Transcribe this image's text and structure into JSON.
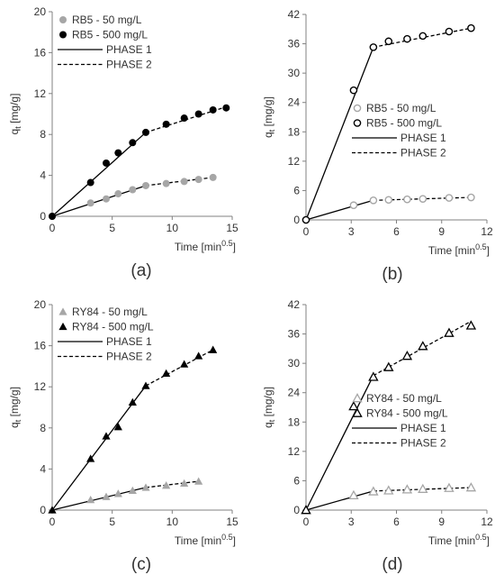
{
  "chart_data": [
    {
      "id": "a",
      "type": "scatter",
      "panel_label": "(a)",
      "xlabel": "Time [min",
      "xlabel_sup": "0.5",
      "xlabel_end": "]",
      "ylabel": "q",
      "ylabel_sub": "t",
      "ylabel_end": " [mg/g]",
      "xlim": [
        0,
        15
      ],
      "ylim": [
        0,
        20
      ],
      "xticks": [
        0,
        5,
        10,
        15
      ],
      "yticks": [
        0,
        4,
        8,
        12,
        16,
        20
      ],
      "legend_position": "top-left",
      "series": [
        {
          "name": "RB5 - 50 mg/L",
          "marker": "circle-filled",
          "color": "#a6a6a6",
          "x": [
            0,
            3.2,
            4.5,
            5.5,
            6.7,
            7.8,
            9.5,
            11.0,
            12.2,
            13.4
          ],
          "y": [
            0,
            1.3,
            1.7,
            2.2,
            2.6,
            3.0,
            3.2,
            3.4,
            3.6,
            3.8
          ]
        },
        {
          "name": "RB5 - 500 mg/L",
          "marker": "circle-filled",
          "color": "#000000",
          "x": [
            0,
            3.2,
            4.5,
            5.5,
            6.7,
            7.8,
            9.5,
            11.0,
            12.2,
            13.4,
            14.5
          ],
          "y": [
            0,
            3.3,
            5.2,
            6.2,
            7.2,
            8.2,
            9.0,
            9.6,
            10.0,
            10.4,
            10.6
          ]
        }
      ],
      "phase_lines": [
        {
          "name": "PHASE 1",
          "style": "solid",
          "x": [
            0,
            7.8
          ],
          "y": [
            0,
            8.2
          ]
        },
        {
          "style": "solid",
          "x": [
            0,
            7.8
          ],
          "y": [
            0,
            3.0
          ]
        },
        {
          "name": "PHASE 2",
          "style": "dashed",
          "x": [
            7.8,
            14.5
          ],
          "y": [
            8.2,
            10.7
          ]
        },
        {
          "style": "dashed",
          "x": [
            7.8,
            13.4
          ],
          "y": [
            3.0,
            3.8
          ]
        }
      ]
    },
    {
      "id": "b",
      "type": "scatter",
      "panel_label": "(b)",
      "xlabel": "Time [min",
      "xlabel_sup": "0.5",
      "xlabel_end": "]",
      "ylabel": "q",
      "ylabel_sub": "t",
      "ylabel_end": " [mg/g]",
      "xlim": [
        0,
        12
      ],
      "ylim": [
        0,
        42
      ],
      "xticks": [
        0,
        3,
        6,
        9,
        12
      ],
      "yticks": [
        0,
        6,
        12,
        18,
        24,
        30,
        36,
        42
      ],
      "legend_position": "center-right",
      "series": [
        {
          "name": "RB5 - 50 mg/L",
          "marker": "circle-open",
          "color": "#a6a6a6",
          "x": [
            0,
            3.16,
            4.47,
            5.48,
            6.71,
            7.75,
            9.49,
            10.95
          ],
          "y": [
            0,
            3.0,
            4.0,
            4.1,
            4.2,
            4.3,
            4.5,
            4.6
          ]
        },
        {
          "name": "RB5 - 500 mg/L",
          "marker": "circle-open",
          "color": "#000000",
          "x": [
            0,
            3.16,
            4.47,
            5.48,
            6.71,
            7.75,
            9.49,
            10.95
          ],
          "y": [
            0,
            26.5,
            35.3,
            36.5,
            37.0,
            37.6,
            38.5,
            39.2
          ]
        }
      ],
      "phase_lines": [
        {
          "name": "PHASE 1",
          "style": "solid",
          "x": [
            0,
            4.47
          ],
          "y": [
            0,
            35.3
          ]
        },
        {
          "style": "solid",
          "x": [
            0,
            4.47
          ],
          "y": [
            0,
            4.0
          ]
        },
        {
          "name": "PHASE 2",
          "style": "dashed",
          "x": [
            4.47,
            10.95
          ],
          "y": [
            35.3,
            39.2
          ]
        },
        {
          "style": "dashed",
          "x": [
            4.47,
            10.95
          ],
          "y": [
            4.0,
            4.6
          ]
        }
      ]
    },
    {
      "id": "c",
      "type": "scatter",
      "panel_label": "(c)",
      "xlabel": "Time [min",
      "xlabel_sup": "0.5",
      "xlabel_end": "]",
      "ylabel": "q",
      "ylabel_sub": "t",
      "ylabel_end": " [mg/g]",
      "xlim": [
        0,
        15
      ],
      "ylim": [
        0,
        20
      ],
      "xticks": [
        0,
        5,
        10,
        15
      ],
      "yticks": [
        0,
        4,
        8,
        12,
        16,
        20
      ],
      "legend_position": "top-left",
      "series": [
        {
          "name": "RY84 - 50 mg/L",
          "marker": "triangle-filled",
          "color": "#a6a6a6",
          "x": [
            0,
            3.2,
            4.5,
            5.5,
            6.7,
            7.8,
            9.5,
            11.0,
            12.2
          ],
          "y": [
            0,
            1.0,
            1.3,
            1.6,
            1.9,
            2.2,
            2.4,
            2.6,
            2.8
          ]
        },
        {
          "name": "RY84 - 500 mg/L",
          "marker": "triangle-filled",
          "color": "#000000",
          "x": [
            0,
            3.2,
            4.5,
            5.5,
            6.7,
            7.8,
            9.5,
            11.0,
            12.2,
            13.4
          ],
          "y": [
            0,
            5.0,
            7.2,
            8.1,
            10.5,
            12.1,
            13.3,
            14.2,
            15.0,
            15.6
          ]
        }
      ],
      "phase_lines": [
        {
          "name": "PHASE 1",
          "style": "solid",
          "x": [
            0,
            7.8
          ],
          "y": [
            0,
            12.1
          ]
        },
        {
          "style": "solid",
          "x": [
            0,
            7.8
          ],
          "y": [
            0,
            2.2
          ]
        },
        {
          "name": "PHASE 2",
          "style": "dashed",
          "x": [
            7.8,
            13.4
          ],
          "y": [
            12.1,
            15.6
          ]
        },
        {
          "style": "dashed",
          "x": [
            7.8,
            12.2
          ],
          "y": [
            2.2,
            2.8
          ]
        }
      ]
    },
    {
      "id": "d",
      "type": "scatter",
      "panel_label": "(d)",
      "xlabel": "Time [min",
      "xlabel_sup": "0.5",
      "xlabel_end": "]",
      "ylabel": "q",
      "ylabel_sub": "t",
      "ylabel_end": " [mg/g]",
      "xlim": [
        0,
        12
      ],
      "ylim": [
        0,
        42
      ],
      "xticks": [
        0,
        3,
        6,
        9,
        12
      ],
      "yticks": [
        0,
        6,
        12,
        18,
        24,
        30,
        36,
        42
      ],
      "legend_position": "center-right",
      "series": [
        {
          "name": "RY84 - 50 mg/L",
          "marker": "triangle-open",
          "color": "#a6a6a6",
          "x": [
            0,
            3.16,
            4.47,
            5.48,
            6.71,
            7.75,
            9.49,
            10.95
          ],
          "y": [
            0,
            3.0,
            3.8,
            4.0,
            4.2,
            4.3,
            4.5,
            4.6
          ]
        },
        {
          "name": "RY84 - 500 mg/L",
          "marker": "triangle-open",
          "color": "#000000",
          "x": [
            0,
            3.16,
            4.47,
            5.48,
            6.71,
            7.75,
            9.49,
            10.95
          ],
          "y": [
            0,
            21.2,
            27.2,
            29.2,
            31.5,
            33.5,
            36.2,
            37.7
          ]
        }
      ],
      "phase_lines": [
        {
          "name": "PHASE 1",
          "style": "solid",
          "x": [
            0,
            4.47
          ],
          "y": [
            0,
            27.5
          ]
        },
        {
          "style": "solid",
          "x": [
            0,
            4.47
          ],
          "y": [
            0,
            3.9
          ]
        },
        {
          "name": "PHASE 2",
          "style": "dashed",
          "x": [
            4.47,
            10.95
          ],
          "y": [
            27.5,
            38.6
          ]
        },
        {
          "style": "dashed",
          "x": [
            4.47,
            10.95
          ],
          "y": [
            3.9,
            4.6
          ]
        }
      ]
    }
  ]
}
